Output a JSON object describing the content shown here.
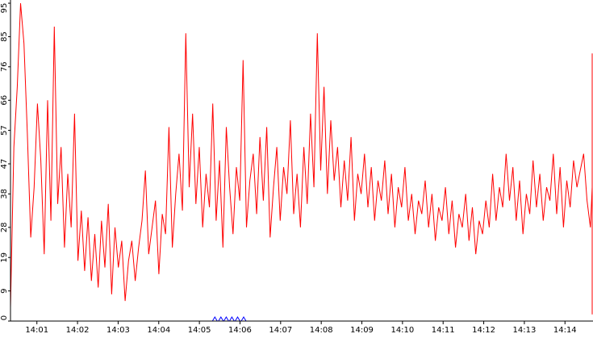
{
  "chart_data": {
    "type": "line",
    "title": "",
    "xlabel": "",
    "ylabel": "",
    "y_ticks": [
      "0",
      "9",
      "19",
      "28",
      "38",
      "47",
      "57",
      "66",
      "76",
      "85",
      "95"
    ],
    "ylim": [
      0,
      95
    ],
    "x_ticks": [
      "14:01",
      "14:02",
      "14:03",
      "14:04",
      "14:05",
      "14:06",
      "14:07",
      "14:08",
      "14:09",
      "14:10",
      "14:11",
      "14:12",
      "14:13",
      "14:14"
    ],
    "x_tick_minutes": [
      1,
      2,
      3,
      4,
      5,
      6,
      7,
      8,
      9,
      10,
      11,
      12,
      13,
      14
    ],
    "xlim_minutes": [
      0.35,
      14.67
    ],
    "grid": false,
    "legend": "none",
    "series_color": "#ff0000",
    "marker_color": "#0000ff",
    "marker_minutes": [
      5.38,
      5.53,
      5.66,
      5.8,
      5.94,
      6.09
    ],
    "series": [
      {
        "x_start_minute": 0.35,
        "x_step_minutes": 0.083,
        "y": [
          4,
          52,
          70,
          95,
          83,
          56,
          25,
          40,
          65,
          48,
          20,
          66,
          30,
          88,
          35,
          52,
          22,
          44,
          28,
          62,
          18,
          33,
          15,
          31,
          12,
          26,
          10,
          30,
          16,
          35,
          8,
          28,
          16,
          24,
          6,
          18,
          24,
          12,
          22,
          30,
          45,
          20,
          28,
          36,
          14,
          32,
          26,
          58,
          22,
          38,
          50,
          33,
          86,
          40,
          62,
          35,
          52,
          28,
          44,
          34,
          65,
          30,
          48,
          22,
          58,
          40,
          26,
          46,
          36,
          78,
          28,
          42,
          50,
          32,
          55,
          36,
          58,
          25,
          40,
          52,
          30,
          46,
          38,
          60,
          32,
          44,
          28,
          52,
          35,
          62,
          40,
          86,
          45,
          70,
          38,
          60,
          42,
          52,
          34,
          48,
          36,
          55,
          30,
          44,
          38,
          50,
          34,
          46,
          30,
          42,
          36,
          48,
          32,
          44,
          28,
          40,
          34,
          46,
          30,
          38,
          26,
          36,
          32,
          42,
          28,
          38,
          24,
          34,
          30,
          40,
          26,
          36,
          22,
          32,
          28,
          38,
          24,
          34,
          20,
          30,
          26,
          36,
          28,
          44,
          30,
          40,
          34,
          50,
          36,
          46,
          30,
          42,
          26,
          38,
          32,
          48,
          34,
          44,
          30,
          40,
          36,
          50,
          32,
          46,
          28,
          42,
          34,
          48,
          40,
          45,
          50,
          36,
          28,
          40,
          46,
          34,
          30,
          42,
          28,
          38,
          24,
          34,
          40,
          30,
          20,
          32,
          26,
          36,
          18,
          28,
          34,
          24,
          20,
          30,
          26,
          16,
          24,
          30,
          22,
          12,
          26,
          32,
          20,
          18,
          28,
          34,
          30,
          40,
          26,
          22,
          30,
          44,
          36,
          28,
          20,
          32,
          46,
          26,
          18,
          34,
          30,
          22,
          80,
          28,
          24,
          58,
          30,
          18,
          64,
          28,
          20,
          48,
          16,
          30,
          24,
          36,
          20,
          12,
          28,
          60,
          24,
          14,
          32,
          26,
          38,
          18,
          50,
          22,
          30,
          12,
          26,
          58,
          28,
          16,
          40,
          24,
          12,
          32,
          22,
          2,
          28,
          66,
          20,
          14,
          30,
          80,
          24,
          16,
          32,
          20,
          12,
          30,
          18,
          28,
          10,
          26,
          16,
          24,
          8,
          30,
          22,
          14,
          36,
          20,
          26,
          12,
          34,
          18,
          28,
          74,
          22,
          10,
          30,
          24,
          18,
          32,
          14,
          22,
          28,
          6,
          20,
          30,
          12,
          18,
          38,
          22,
          28,
          14,
          24
        ]
      }
    ]
  }
}
